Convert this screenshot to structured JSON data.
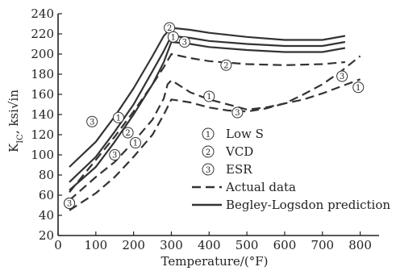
{
  "chart_data": {
    "type": "line",
    "xlabel": "Temperature/(°F)",
    "ylabel_main": "K",
    "ylabel_sub": "IC",
    "ylabel_units": ", ksi√in",
    "xlim": [
      0,
      850
    ],
    "ylim": [
      20,
      240
    ],
    "xticks": [
      0,
      100,
      200,
      300,
      400,
      500,
      600,
      700,
      800
    ],
    "yticks": [
      20,
      40,
      60,
      80,
      100,
      120,
      140,
      160,
      180,
      200,
      220,
      240
    ],
    "grid": false,
    "legend_position": "center-right",
    "legend": [
      {
        "marker": "1",
        "label": "Low S"
      },
      {
        "marker": "2",
        "label": "VCD"
      },
      {
        "marker": "3",
        "label": "ESR"
      },
      {
        "style": "dashed",
        "label": "Actual data"
      },
      {
        "style": "solid",
        "label": "Begley-Logsdon prediction"
      }
    ],
    "series": [
      {
        "marker": "2",
        "style": "solid",
        "x": [
          30,
          100,
          150,
          200,
          250,
          280,
          300,
          350,
          400,
          500,
          600,
          700,
          760
        ],
        "y": [
          88,
          113,
          138,
          166,
          198,
          218,
          226,
          224,
          221,
          217,
          214,
          214,
          218
        ]
      },
      {
        "marker": "1",
        "style": "solid",
        "x": [
          30,
          100,
          150,
          200,
          250,
          280,
          300,
          350,
          400,
          500,
          600,
          700,
          760
        ],
        "y": [
          73,
          98,
          123,
          150,
          183,
          203,
          218,
          216,
          213,
          210,
          208,
          208,
          212
        ]
      },
      {
        "marker": "3",
        "style": "solid",
        "x": [
          30,
          100,
          150,
          200,
          250,
          280,
          300,
          350,
          400,
          500,
          600,
          700,
          760
        ],
        "y": [
          65,
          88,
          113,
          140,
          170,
          192,
          212,
          210,
          207,
          204,
          202,
          202,
          206
        ]
      },
      {
        "marker": "2",
        "style": "dashed",
        "x": [
          30,
          100,
          150,
          200,
          250,
          280,
          300,
          350,
          400,
          500,
          600,
          700,
          760
        ],
        "y": [
          63,
          95,
          118,
          143,
          170,
          187,
          200,
          196,
          193,
          190,
          189,
          190,
          192
        ]
      },
      {
        "marker": "1",
        "style": "dashed",
        "x": [
          30,
          100,
          150,
          200,
          250,
          280,
          290,
          300,
          350,
          400,
          450,
          500,
          550,
          600,
          650,
          700,
          750,
          800
        ],
        "y": [
          55,
          78,
          93,
          113,
          135,
          156,
          170,
          174,
          162,
          155,
          150,
          145,
          147,
          151,
          155,
          161,
          168,
          175
        ]
      },
      {
        "marker": "3",
        "style": "dashed",
        "x": [
          30,
          100,
          150,
          200,
          250,
          280,
          300,
          350,
          400,
          450,
          500,
          550,
          600,
          650,
          700,
          750,
          800
        ],
        "y": [
          45,
          62,
          78,
          98,
          120,
          140,
          155,
          152,
          147,
          144,
          143,
          146,
          151,
          160,
          170,
          183,
          198
        ]
      }
    ],
    "point_markers": [
      {
        "label": "2",
        "x": 30,
        "y": 52
      },
      {
        "label": "3",
        "x": 30,
        "y": 52
      },
      {
        "label": "3",
        "x": 90,
        "y": 133
      },
      {
        "label": "1",
        "x": 160,
        "y": 137
      },
      {
        "label": "2",
        "x": 185,
        "y": 122
      },
      {
        "label": "3",
        "x": 150,
        "y": 100
      },
      {
        "label": "1",
        "x": 205,
        "y": 112
      },
      {
        "label": "2",
        "x": 295,
        "y": 226
      },
      {
        "label": "1",
        "x": 305,
        "y": 217
      },
      {
        "label": "3",
        "x": 335,
        "y": 212
      },
      {
        "label": "2",
        "x": 445,
        "y": 189
      },
      {
        "label": "1",
        "x": 400,
        "y": 158
      },
      {
        "label": "3",
        "x": 475,
        "y": 142
      },
      {
        "label": "3",
        "x": 752,
        "y": 178
      },
      {
        "label": "1",
        "x": 795,
        "y": 167
      }
    ]
  }
}
